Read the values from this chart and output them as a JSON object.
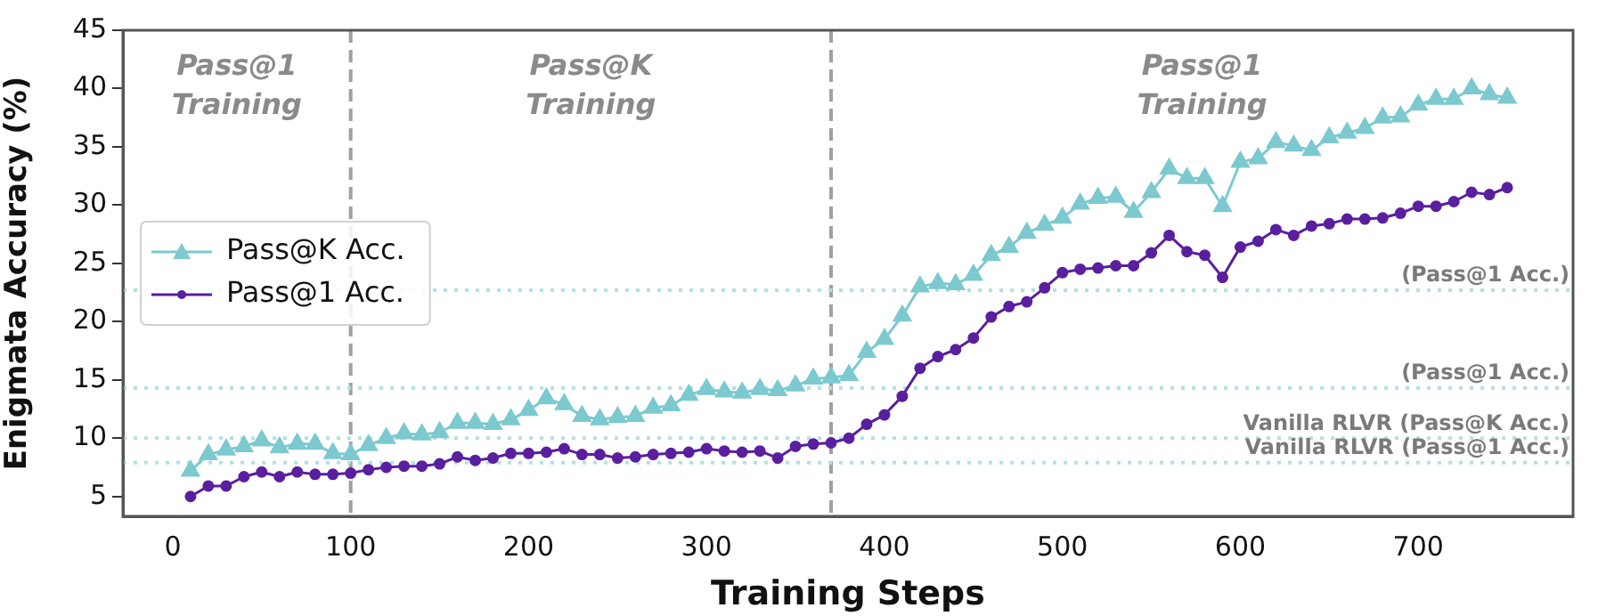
{
  "chart_data": {
    "type": "line",
    "xlabel": "Training Steps",
    "ylabel": "Enigmata Accuracy (%)",
    "x": [
      10,
      20,
      30,
      40,
      50,
      60,
      70,
      80,
      90,
      100,
      110,
      120,
      130,
      140,
      150,
      160,
      170,
      180,
      190,
      200,
      210,
      220,
      230,
      240,
      250,
      260,
      270,
      280,
      290,
      300,
      310,
      320,
      330,
      340,
      350,
      360,
      370,
      380,
      390,
      400,
      410,
      420,
      430,
      440,
      450,
      460,
      470,
      480,
      490,
      500,
      510,
      520,
      530,
      540,
      550,
      560,
      570,
      580,
      590,
      600,
      610,
      620,
      630,
      640,
      650,
      660,
      670,
      680,
      690,
      700,
      710,
      720,
      730,
      740,
      750
    ],
    "series": [
      {
        "name": "Pass@K Acc.",
        "color": "#7cc9cf",
        "marker": "triangle",
        "values": [
          7.2,
          8.6,
          9.0,
          9.3,
          9.8,
          9.2,
          9.5,
          9.5,
          8.7,
          8.6,
          9.4,
          10.0,
          10.4,
          10.3,
          10.5,
          11.3,
          11.3,
          11.2,
          11.6,
          12.4,
          13.4,
          12.9,
          11.9,
          11.6,
          11.8,
          11.9,
          12.6,
          12.8,
          13.7,
          14.2,
          14.0,
          13.9,
          14.2,
          14.1,
          14.5,
          15.1,
          15.2,
          15.4,
          17.4,
          18.5,
          20.5,
          23.0,
          23.3,
          23.2,
          24.0,
          25.7,
          26.4,
          27.6,
          28.3,
          28.9,
          30.1,
          30.6,
          30.7,
          29.4,
          31.1,
          33.1,
          32.3,
          32.3,
          29.9,
          33.7,
          34.0,
          35.4,
          35.1,
          34.7,
          35.8,
          36.2,
          36.6,
          37.5,
          37.6,
          38.6,
          39.1,
          39.1,
          40.0,
          39.5,
          39.2
        ]
      },
      {
        "name": "Pass@1 Acc.",
        "color": "#5a1f9e",
        "marker": "circle",
        "values": [
          5.0,
          5.9,
          5.9,
          6.7,
          7.1,
          6.7,
          7.1,
          6.9,
          6.9,
          7.0,
          7.3,
          7.5,
          7.6,
          7.6,
          7.8,
          8.4,
          8.1,
          8.3,
          8.7,
          8.7,
          8.8,
          9.1,
          8.6,
          8.6,
          8.3,
          8.4,
          8.6,
          8.7,
          8.8,
          9.1,
          8.9,
          8.8,
          8.9,
          8.3,
          9.3,
          9.5,
          9.6,
          10.0,
          11.2,
          12.0,
          13.6,
          16.0,
          17.0,
          17.6,
          18.6,
          20.4,
          21.3,
          21.7,
          22.9,
          24.2,
          24.5,
          24.6,
          24.8,
          24.8,
          25.9,
          27.4,
          26.0,
          25.7,
          23.8,
          26.4,
          26.9,
          27.9,
          27.4,
          28.2,
          28.4,
          28.8,
          28.8,
          28.9,
          29.3,
          29.9,
          29.9,
          30.3,
          31.1,
          30.9,
          31.5
        ]
      }
    ],
    "xlim": [
      -28,
      787
    ],
    "xticks": [
      0,
      100,
      200,
      300,
      400,
      500,
      600,
      700
    ],
    "ylim": [
      3.3,
      45
    ],
    "yticks": [
      5,
      10,
      15,
      20,
      25,
      30,
      35,
      40,
      45
    ],
    "ref_lines": [
      {
        "axis": "x",
        "value": 100,
        "label": null,
        "color": "#a0a0a0",
        "line_style": "dashed"
      },
      {
        "axis": "x",
        "value": 370,
        "label": null,
        "color": "#a0a0a0",
        "line_style": "dashed"
      },
      {
        "axis": "y",
        "value": 22.7,
        "label": "(Pass@1 Acc.)",
        "color": "#b3e0e4",
        "line_style": "dotted"
      },
      {
        "axis": "y",
        "value": 14.3,
        "label": "(Pass@1 Acc.)",
        "color": "#b3e0e4",
        "line_style": "dotted"
      },
      {
        "axis": "y",
        "value": 10.0,
        "label": "Vanilla RLVR (Pass@K Acc.)",
        "color": "#b3e0e4",
        "line_style": "dotted"
      },
      {
        "axis": "y",
        "value": 7.9,
        "label": "Vanilla RLVR (Pass@1 Acc.)",
        "color": "#b3e0e4",
        "line_style": "dotted"
      }
    ],
    "annotations": [
      "Pass@1\nTraining",
      "Pass@K\nTraining",
      "Pass@1\nTraining"
    ],
    "legend": "center left",
    "grid": false
  }
}
